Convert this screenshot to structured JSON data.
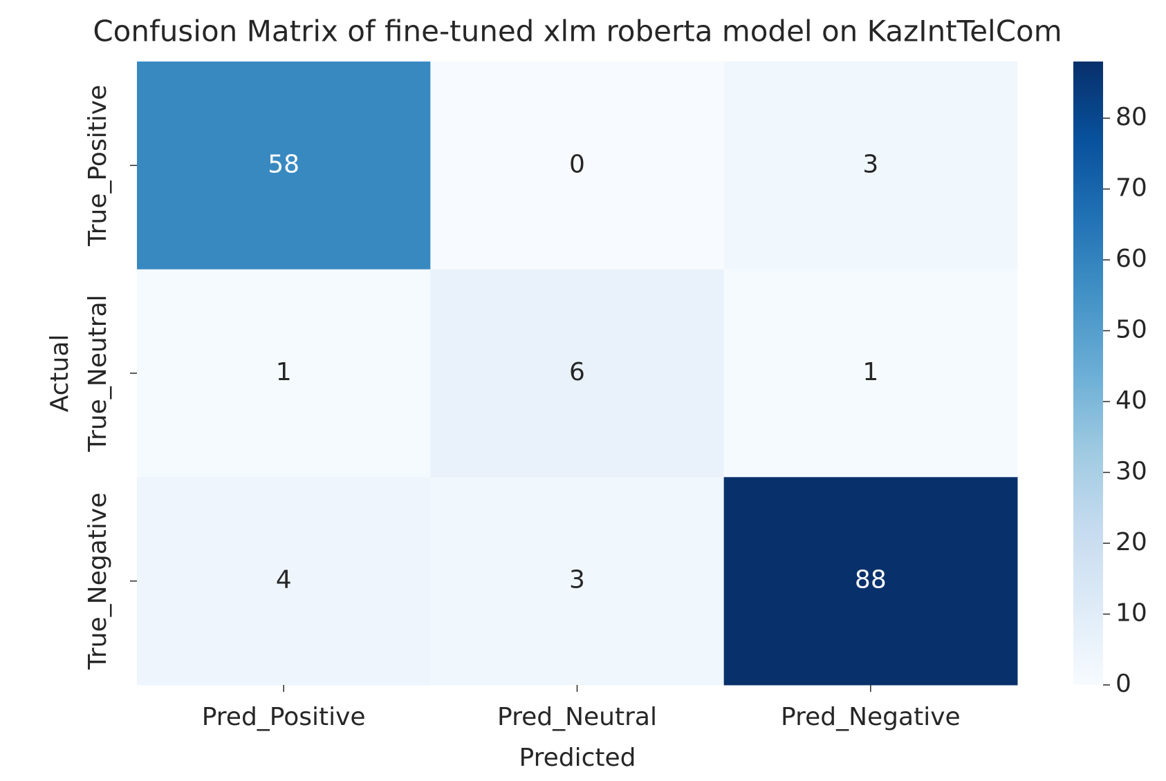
{
  "chart_data": {
    "type": "heatmap",
    "title": "Confusion Matrix of fine-tuned xlm roberta model on KazIntTelCom",
    "x_label": "Predicted",
    "y_label": "Actual",
    "x_categories": [
      "Pred_Positive",
      "Pred_Neutral",
      "Pred_Negative"
    ],
    "y_categories": [
      "True_Positive",
      "True_Neutral",
      "True_Negative"
    ],
    "values": [
      [
        58,
        0,
        3
      ],
      [
        1,
        6,
        1
      ],
      [
        4,
        3,
        88
      ]
    ],
    "colormap": [
      "#f7fbff",
      "#deebf7",
      "#c6dbef",
      "#9ecae1",
      "#6baed6",
      "#4292c6",
      "#2171b5",
      "#08519c",
      "#08306b"
    ],
    "clim": [
      0,
      88
    ],
    "cticks": [
      0,
      10,
      20,
      30,
      40,
      50,
      60,
      70,
      80
    ]
  }
}
